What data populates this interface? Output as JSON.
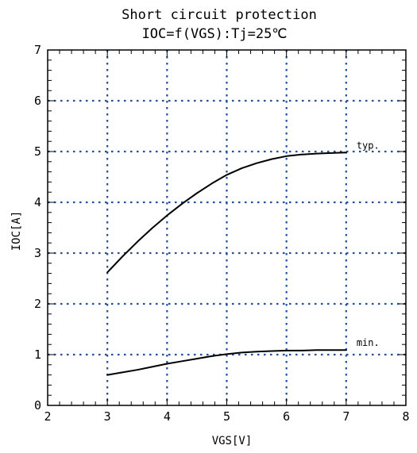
{
  "chart_data": {
    "type": "line",
    "title": "Short circuit protection",
    "subtitle": "IOC=f(VGS):Tj=25℃",
    "xlabel": "VGS[V]",
    "ylabel": "IOC[A]",
    "xlim": [
      2,
      8
    ],
    "ylim": [
      0,
      7
    ],
    "xticks": [
      2,
      3,
      4,
      5,
      6,
      7,
      8
    ],
    "yticks": [
      0,
      1,
      2,
      3,
      4,
      5,
      6,
      7
    ],
    "grid": true,
    "grid_style": "dotted",
    "grid_color": "#1f4e9c",
    "line_color": "#000000",
    "series": [
      {
        "name": "typ.",
        "x": [
          3.0,
          3.25,
          3.5,
          3.75,
          4.0,
          4.25,
          4.5,
          4.75,
          5.0,
          5.25,
          5.5,
          5.75,
          6.0,
          6.25,
          6.5,
          6.75,
          7.0
        ],
        "y": [
          2.62,
          2.93,
          3.22,
          3.49,
          3.74,
          3.97,
          4.18,
          4.37,
          4.54,
          4.67,
          4.77,
          4.85,
          4.91,
          4.94,
          4.96,
          4.97,
          4.98
        ]
      },
      {
        "name": "min.",
        "x": [
          3.0,
          3.25,
          3.5,
          3.75,
          4.0,
          4.25,
          4.5,
          4.75,
          5.0,
          5.25,
          5.5,
          5.75,
          6.0,
          6.25,
          6.5,
          6.75,
          7.0
        ],
        "y": [
          0.6,
          0.65,
          0.7,
          0.76,
          0.82,
          0.87,
          0.92,
          0.97,
          1.01,
          1.04,
          1.06,
          1.07,
          1.08,
          1.08,
          1.09,
          1.09,
          1.09
        ]
      }
    ]
  }
}
